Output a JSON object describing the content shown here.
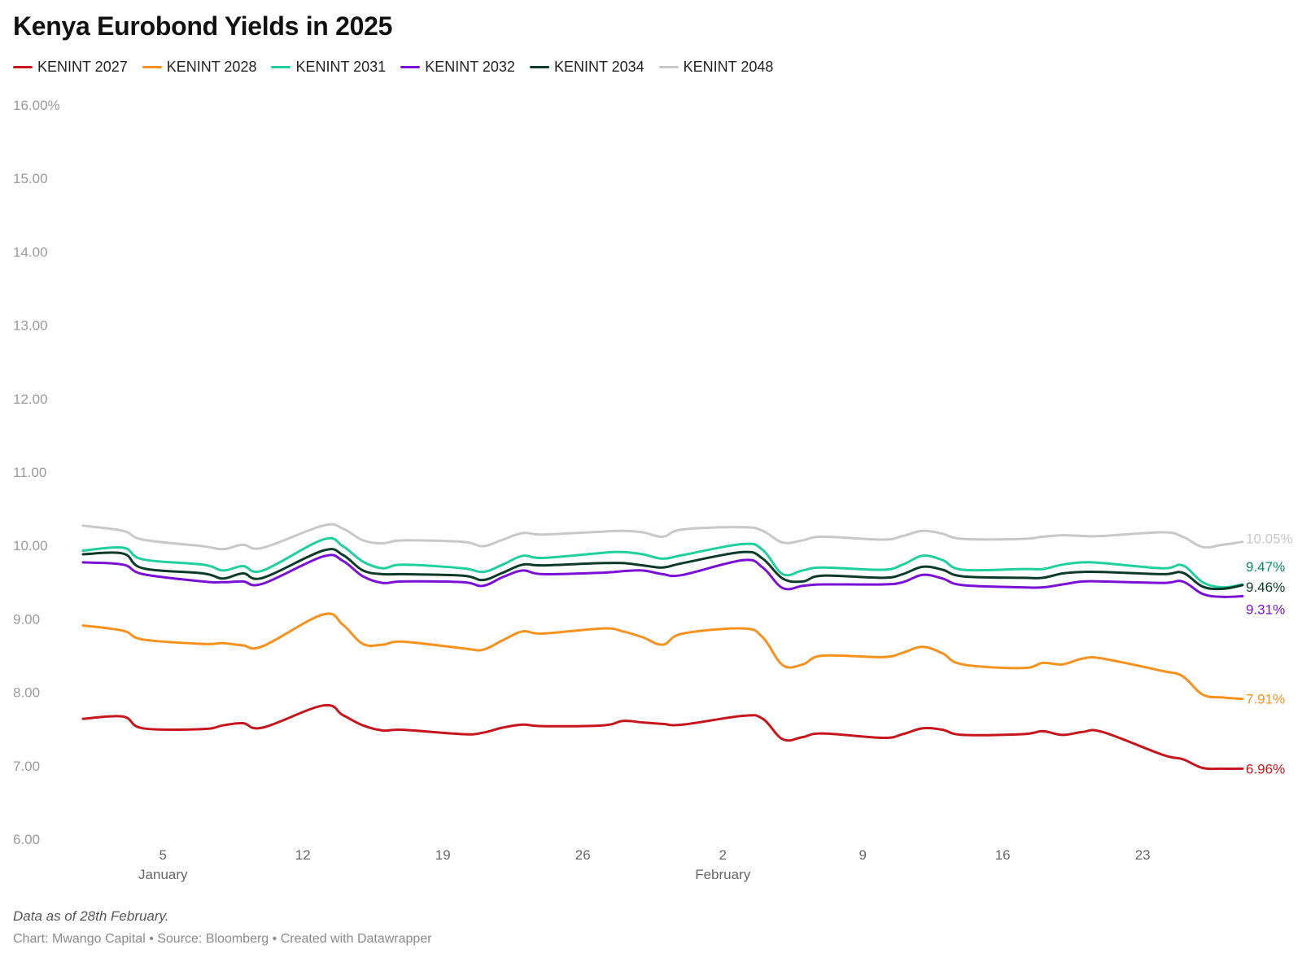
{
  "title": "Kenya Eurobond Yields in 2025",
  "notes": "Data as of 28th February.",
  "credit": "Chart: Mwango Capital • Source: Bloomberg • Created with Datawrapper",
  "chart_data": {
    "type": "line",
    "title": "Kenya Eurobond Yields in 2025",
    "x_start": "2025-01-01",
    "x_end": "2025-02-28",
    "ylim": [
      6,
      16
    ],
    "y_ticks": [
      {
        "value": 16,
        "label": "16.00%"
      },
      {
        "value": 15,
        "label": "15.00"
      },
      {
        "value": 14,
        "label": "14.00"
      },
      {
        "value": 13,
        "label": "13.00"
      },
      {
        "value": 12,
        "label": "12.00"
      },
      {
        "value": 11,
        "label": "11.00"
      },
      {
        "value": 10,
        "label": "10.00"
      },
      {
        "value": 9,
        "label": "9.00"
      },
      {
        "value": 8,
        "label": "8.00"
      },
      {
        "value": 7,
        "label": "7.00"
      },
      {
        "value": 6,
        "label": "6.00"
      }
    ],
    "x_ticks": [
      {
        "date": "2025-01-05",
        "label": "5",
        "sublabel": "January"
      },
      {
        "date": "2025-01-12",
        "label": "12",
        "sublabel": ""
      },
      {
        "date": "2025-01-19",
        "label": "19",
        "sublabel": ""
      },
      {
        "date": "2025-01-26",
        "label": "26",
        "sublabel": ""
      },
      {
        "date": "2025-02-02",
        "label": "2",
        "sublabel": "February"
      },
      {
        "date": "2025-02-09",
        "label": "9",
        "sublabel": ""
      },
      {
        "date": "2025-02-16",
        "label": "16",
        "sublabel": ""
      },
      {
        "date": "2025-02-23",
        "label": "23",
        "sublabel": ""
      }
    ],
    "grid": false,
    "legend_position": "top-left",
    "x": [
      "2025-01-01",
      "2025-01-03",
      "2025-01-04",
      "2025-01-07",
      "2025-01-08",
      "2025-01-09",
      "2025-01-10",
      "2025-01-13",
      "2025-01-14",
      "2025-01-15",
      "2025-01-16",
      "2025-01-17",
      "2025-01-20",
      "2025-01-21",
      "2025-01-22",
      "2025-01-23",
      "2025-01-24",
      "2025-01-27",
      "2025-01-28",
      "2025-01-29",
      "2025-01-30",
      "2025-01-31",
      "2025-02-03",
      "2025-02-04",
      "2025-02-05",
      "2025-02-06",
      "2025-02-07",
      "2025-02-10",
      "2025-02-11",
      "2025-02-12",
      "2025-02-13",
      "2025-02-14",
      "2025-02-17",
      "2025-02-18",
      "2025-02-19",
      "2025-02-20",
      "2025-02-21",
      "2025-02-24",
      "2025-02-25",
      "2025-02-26",
      "2025-02-27",
      "2025-02-28"
    ],
    "series": [
      {
        "name": "KENINT 2027",
        "color": "#c4161c",
        "end_label": "6.96%",
        "values": [
          7.64,
          7.67,
          7.51,
          7.5,
          7.55,
          7.58,
          7.52,
          7.82,
          7.69,
          7.55,
          7.48,
          7.49,
          7.43,
          7.45,
          7.52,
          7.56,
          7.54,
          7.55,
          7.61,
          7.59,
          7.57,
          7.56,
          7.68,
          7.64,
          7.36,
          7.39,
          7.44,
          7.38,
          7.43,
          7.51,
          7.49,
          7.42,
          7.43,
          7.47,
          7.42,
          7.46,
          7.46,
          7.15,
          7.09,
          6.97,
          6.96,
          6.96
        ]
      },
      {
        "name": "KENINT 2028",
        "color": "#f5921e",
        "end_label": "7.91%",
        "values": [
          8.91,
          8.84,
          8.72,
          8.66,
          8.67,
          8.64,
          8.63,
          9.06,
          8.92,
          8.66,
          8.65,
          8.69,
          8.6,
          8.58,
          8.71,
          8.83,
          8.8,
          8.87,
          8.83,
          8.75,
          8.65,
          8.8,
          8.87,
          8.75,
          8.37,
          8.38,
          8.5,
          8.48,
          8.54,
          8.62,
          8.53,
          8.38,
          8.33,
          8.4,
          8.38,
          8.46,
          8.46,
          8.29,
          8.22,
          7.97,
          7.93,
          7.91
        ]
      },
      {
        "name": "KENINT 2031",
        "color": "#1fcf9e",
        "end_label": "9.47%",
        "values": [
          9.93,
          9.97,
          9.81,
          9.74,
          9.66,
          9.72,
          9.66,
          10.08,
          9.99,
          9.78,
          9.69,
          9.74,
          9.69,
          9.64,
          9.74,
          9.86,
          9.83,
          9.9,
          9.91,
          9.88,
          9.82,
          9.87,
          10.02,
          9.94,
          9.61,
          9.66,
          9.7,
          9.67,
          9.74,
          9.86,
          9.8,
          9.67,
          9.68,
          9.68,
          9.74,
          9.77,
          9.76,
          9.69,
          9.73,
          9.5,
          9.43,
          9.47
        ]
      },
      {
        "name": "KENINT 2032",
        "color": "#7a10d4",
        "end_label": "9.31%",
        "values": [
          9.77,
          9.74,
          9.61,
          9.51,
          9.5,
          9.51,
          9.48,
          9.85,
          9.79,
          9.58,
          9.49,
          9.51,
          9.5,
          9.45,
          9.57,
          9.66,
          9.61,
          9.63,
          9.65,
          9.66,
          9.61,
          9.6,
          9.8,
          9.7,
          9.42,
          9.45,
          9.47,
          9.47,
          9.5,
          9.6,
          9.55,
          9.46,
          9.43,
          9.43,
          9.47,
          9.51,
          9.51,
          9.49,
          9.51,
          9.34,
          9.3,
          9.31
        ]
      },
      {
        "name": "KENINT 2034",
        "color": "#0b3b28",
        "end_label": "9.46%",
        "values": [
          9.88,
          9.89,
          9.69,
          9.62,
          9.55,
          9.62,
          9.56,
          9.93,
          9.87,
          9.66,
          9.61,
          9.61,
          9.59,
          9.53,
          9.63,
          9.74,
          9.73,
          9.76,
          9.76,
          9.73,
          9.7,
          9.76,
          9.91,
          9.82,
          9.55,
          9.51,
          9.59,
          9.56,
          9.61,
          9.71,
          9.67,
          9.58,
          9.56,
          9.56,
          9.62,
          9.64,
          9.64,
          9.61,
          9.63,
          9.44,
          9.41,
          9.46
        ]
      },
      {
        "name": "KENINT 2048",
        "color": "#c8c8c8",
        "end_label": "10.05%",
        "values": [
          10.27,
          10.2,
          10.08,
          9.99,
          9.95,
          10.01,
          9.97,
          10.27,
          10.23,
          10.07,
          10.03,
          10.07,
          10.05,
          9.99,
          10.08,
          10.17,
          10.15,
          10.19,
          10.2,
          10.18,
          10.12,
          10.22,
          10.25,
          10.2,
          10.04,
          10.07,
          10.12,
          10.08,
          10.13,
          10.2,
          10.16,
          10.09,
          10.09,
          10.12,
          10.14,
          10.13,
          10.13,
          10.18,
          10.12,
          9.98,
          10.01,
          10.05
        ]
      }
    ]
  }
}
